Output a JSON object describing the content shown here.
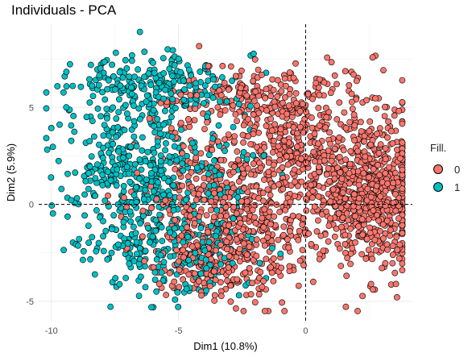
{
  "chart_data": {
    "type": "scatter",
    "title": "Individuals - PCA",
    "xlabel": "Dim1 (10.8%)",
    "ylabel": "Dim2 (5.9%)",
    "xlim": [
      -10.5,
      4.2
    ],
    "ylim": [
      -6.0,
      9.3
    ],
    "x_ticks": [
      -10,
      -5,
      0
    ],
    "y_ticks": [
      -5,
      0,
      5
    ],
    "x_tick_labels": [
      "-10",
      "-5",
      "0"
    ],
    "y_tick_labels": [
      "-5",
      "0",
      "5"
    ],
    "grid": true,
    "reference_lines": {
      "x": 0,
      "y": 0
    },
    "legend_position": "right",
    "legend_title": "Fill.",
    "series": [
      {
        "name": "0",
        "color": "#F8766D",
        "clusters": [
          {
            "cx": 2.4,
            "cy": 0.8,
            "sx": 1.2,
            "sy": 2.0,
            "n": 700
          },
          {
            "cx": -2.8,
            "cy": -0.3,
            "sx": 1.7,
            "sy": 2.1,
            "n": 600
          },
          {
            "cx": -1.5,
            "cy": 5.4,
            "sx": 2.0,
            "sy": 0.9,
            "n": 250
          },
          {
            "cx": -0.5,
            "cy": 2.8,
            "sx": 1.2,
            "sy": 1.2,
            "n": 180
          },
          {
            "cx": -3.5,
            "cy": -3.3,
            "sx": 1.2,
            "sy": 0.8,
            "n": 120
          }
        ]
      },
      {
        "name": "1",
        "color": "#00BFC4",
        "clusters": [
          {
            "cx": -7.0,
            "cy": 1.5,
            "sx": 1.3,
            "sy": 2.1,
            "n": 360
          },
          {
            "cx": -6.2,
            "cy": 6.2,
            "sx": 1.7,
            "sy": 0.8,
            "n": 220
          },
          {
            "cx": -5.3,
            "cy": -2.8,
            "sx": 1.5,
            "sy": 1.0,
            "n": 170
          },
          {
            "cx": -4.2,
            "cy": 0.8,
            "sx": 1.4,
            "sy": 2.2,
            "n": 160
          }
        ]
      }
    ]
  }
}
